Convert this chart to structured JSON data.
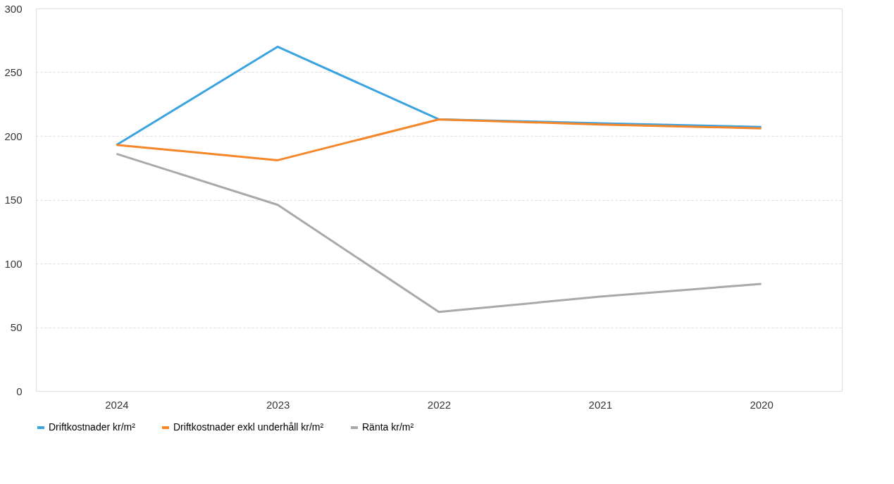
{
  "chart_data": {
    "type": "line",
    "categories": [
      "2024",
      "2023",
      "2022",
      "2021",
      "2020"
    ],
    "series": [
      {
        "name": "Driftkostnader kr/m²",
        "color": "#3aa3e0",
        "values": [
          193,
          270,
          213,
          210,
          207
        ]
      },
      {
        "name": "Driftkostnader exkl underhåll kr/m²",
        "color": "#f5862a",
        "values": [
          193,
          181,
          213,
          209,
          206
        ]
      },
      {
        "name": "Ränta kr/m²",
        "color": "#a9a9a9",
        "values": [
          186,
          146,
          62,
          74,
          84
        ]
      }
    ],
    "ylim": [
      0,
      300
    ],
    "yticks": [
      0,
      50,
      100,
      150,
      200,
      250,
      300
    ],
    "grid": "y",
    "legend": "bottom",
    "marker": "none",
    "line_style": "solid"
  }
}
